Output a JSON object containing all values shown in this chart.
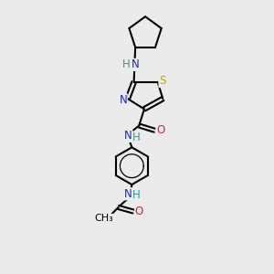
{
  "background_color": "#ebebeb",
  "atom_colors": {
    "C": "#000000",
    "N_blue": "#2222cc",
    "N_teal": "#339999",
    "O": "#dd2222",
    "S": "#bbaa00",
    "H": "#000000"
  },
  "figsize": [
    3.0,
    3.0
  ],
  "dpi": 100,
  "xlim": [
    0,
    10
  ],
  "ylim": [
    0,
    13
  ]
}
